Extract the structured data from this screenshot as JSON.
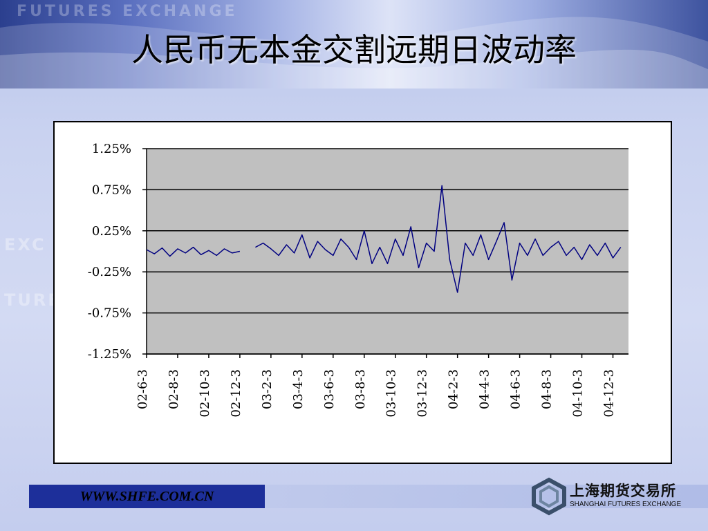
{
  "slide": {
    "title": "人民币无本金交割远期日波动率",
    "header_watermark": "FUTURES EXCHANGE",
    "side_ghosts": [
      "EXC",
      "TURE"
    ]
  },
  "footer": {
    "url": "WWW.SHFE.COM.CN",
    "logo_cn": "上海期货交易所",
    "logo_en": "SHANGHAI FUTURES EXCHANGE"
  },
  "colors": {
    "series": "#000080",
    "plot_bg": "#c0c0c0",
    "footer_box": "#1d2f9a"
  },
  "chart_data": {
    "type": "line",
    "title": "",
    "xlabel": "",
    "ylabel": "",
    "ylim": [
      -1.25,
      1.25
    ],
    "y_ticks": [
      1.25,
      0.75,
      0.25,
      -0.25,
      -0.75,
      -1.25
    ],
    "y_tick_labels": [
      "1.25%",
      "0.75%",
      "0.25%",
      "-0.25%",
      "-0.75%",
      "-1.25%"
    ],
    "gridlines": "horizontal",
    "legend": "none",
    "x_tick_labels": [
      "02-6-3",
      "02-8-3",
      "02-10-3",
      "02-12-3",
      "03-2-3",
      "03-4-3",
      "03-6-3",
      "03-8-3",
      "03-10-3",
      "03-12-3",
      "04-2-3",
      "04-4-3",
      "04-6-3",
      "04-8-3",
      "04-10-3",
      "04-12-3"
    ],
    "series": [
      {
        "unit": "%",
        "segments": [
          [
            [
              0,
              0.02
            ],
            [
              0.5,
              -0.03
            ],
            [
              1,
              0.04
            ],
            [
              1.5,
              -0.06
            ],
            [
              2,
              0.03
            ],
            [
              2.5,
              -0.02
            ],
            [
              3,
              0.05
            ],
            [
              3.5,
              -0.04
            ],
            [
              4,
              0.01
            ],
            [
              4.5,
              -0.05
            ],
            [
              5,
              0.03
            ],
            [
              5.5,
              -0.02
            ],
            [
              6,
              0.0
            ]
          ],
          [
            [
              7,
              0.05
            ],
            [
              7.5,
              0.1
            ],
            [
              8,
              0.03
            ],
            [
              8.5,
              -0.05
            ],
            [
              9,
              0.08
            ],
            [
              9.5,
              -0.02
            ],
            [
              10,
              0.2
            ],
            [
              10.5,
              -0.08
            ],
            [
              11,
              0.12
            ],
            [
              11.5,
              0.02
            ],
            [
              12,
              -0.05
            ],
            [
              12.5,
              0.15
            ],
            [
              13,
              0.05
            ],
            [
              13.5,
              -0.1
            ],
            [
              14,
              0.25
            ],
            [
              14.5,
              -0.15
            ],
            [
              15,
              0.05
            ],
            [
              15.5,
              -0.15
            ],
            [
              16,
              0.15
            ],
            [
              16.5,
              -0.05
            ],
            [
              17,
              0.3
            ],
            [
              17.5,
              -0.2
            ],
            [
              18,
              0.1
            ],
            [
              18.5,
              0.0
            ],
            [
              19,
              0.8
            ],
            [
              19.5,
              -0.1
            ],
            [
              20,
              -0.5
            ],
            [
              20.5,
              0.1
            ],
            [
              21,
              -0.05
            ],
            [
              21.5,
              0.2
            ],
            [
              22,
              -0.1
            ],
            [
              22.5,
              0.12
            ],
            [
              23,
              0.35
            ],
            [
              23.5,
              -0.35
            ],
            [
              24,
              0.1
            ],
            [
              24.5,
              -0.05
            ],
            [
              25,
              0.15
            ],
            [
              25.5,
              -0.05
            ],
            [
              26,
              0.05
            ],
            [
              26.5,
              0.12
            ],
            [
              27,
              -0.05
            ],
            [
              27.5,
              0.05
            ],
            [
              28,
              -0.1
            ],
            [
              28.5,
              0.08
            ],
            [
              29,
              -0.05
            ],
            [
              29.5,
              0.1
            ],
            [
              30,
              -0.08
            ],
            [
              30.5,
              0.05
            ]
          ]
        ]
      }
    ]
  }
}
